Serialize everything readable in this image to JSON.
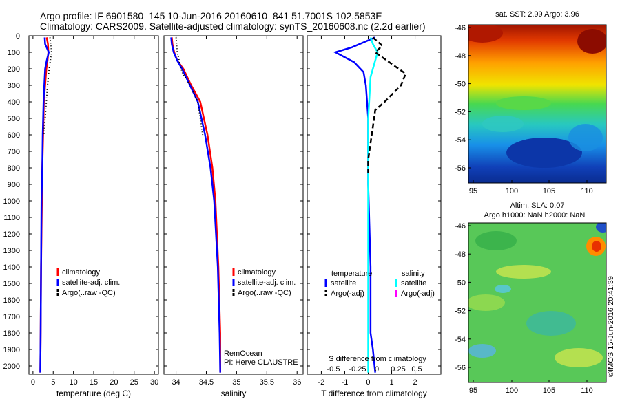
{
  "header": {
    "line1": "Argo profile: IF 6901580_145 10-Jun-2016 20160610_841 51.7001S 102.5853E",
    "line2": "Climatology: CARS2009. Satellite-adjusted climatology: synTS_20160608.nc (2.2d earlier)"
  },
  "side_stamp": "©IMOS 15-Jun-2016 20:41:39",
  "colors": {
    "red": "#ff0000",
    "blue": "#0000ff",
    "black": "#000000",
    "cyan": "#00ffff",
    "magenta": "#ff00ff"
  },
  "chart_data": [
    {
      "type": "line",
      "panel": "temperature",
      "xlabel": "temperature (deg C)",
      "ylabel": "",
      "xlim": [
        -1,
        31
      ],
      "ylim": [
        2050,
        0
      ],
      "xticks": [
        0,
        5,
        10,
        15,
        20,
        25,
        30
      ],
      "yticks": [
        0,
        100,
        200,
        300,
        400,
        500,
        600,
        700,
        800,
        900,
        1000,
        1100,
        1200,
        1300,
        1400,
        1500,
        1600,
        1700,
        1800,
        1900,
        2000
      ],
      "legend": [
        "climatology",
        "satellite-adj. clim.",
        "Argo(..raw -QC)"
      ],
      "series": [
        {
          "name": "climatology",
          "color": "red",
          "style": "solid",
          "x": [
            3.4,
            3.7,
            3.8,
            3.6,
            3.3,
            3.0,
            2.7,
            2.5,
            2.3,
            2.2,
            2.0,
            1.9,
            1.8
          ],
          "y": [
            10,
            50,
            100,
            150,
            200,
            300,
            400,
            600,
            800,
            1000,
            1400,
            1800,
            2040
          ]
        },
        {
          "name": "satellite-adj. clim.",
          "color": "blue",
          "style": "solid",
          "x": [
            2.9,
            3.0,
            3.9,
            3.4,
            3.0,
            2.8,
            2.6,
            2.4,
            2.3,
            2.1,
            2.0,
            1.9,
            1.8
          ],
          "y": [
            10,
            50,
            100,
            150,
            200,
            300,
            400,
            600,
            800,
            1000,
            1400,
            1800,
            2040
          ]
        },
        {
          "name": "Argo(..raw -QC)",
          "color": "black",
          "style": "dotted",
          "x": [
            4.2,
            4.4,
            4.6,
            4.3,
            3.9,
            3.6,
            3.3,
            3.0,
            2.7
          ],
          "y": [
            10,
            50,
            100,
            150,
            220,
            300,
            400,
            500,
            600
          ]
        }
      ]
    },
    {
      "type": "line",
      "panel": "salinity",
      "xlabel": "salinity",
      "ylabel": "",
      "xlim": [
        33.8,
        36.1
      ],
      "ylim": [
        2050,
        0
      ],
      "xticks": [
        34,
        34.5,
        35,
        35.5,
        36
      ],
      "legend": [
        "climatology",
        "satellite-adj. clim.",
        "Argo(..raw -QC)"
      ],
      "annotations": [
        "RemOcean",
        "PI: Herve CLAUSTRE"
      ],
      "series": [
        {
          "name": "climatology",
          "color": "red",
          "style": "solid",
          "x": [
            33.93,
            33.94,
            33.97,
            34.02,
            34.12,
            34.25,
            34.4,
            34.52,
            34.6,
            34.65,
            34.7,
            34.73,
            34.73
          ],
          "y": [
            10,
            50,
            100,
            150,
            200,
            300,
            400,
            600,
            800,
            1000,
            1400,
            1800,
            2040
          ]
        },
        {
          "name": "satellite-adj. clim.",
          "color": "blue",
          "style": "solid",
          "x": [
            33.92,
            33.93,
            33.96,
            34.02,
            34.1,
            34.23,
            34.36,
            34.48,
            34.57,
            34.63,
            34.69,
            34.72,
            34.73
          ],
          "y": [
            10,
            50,
            100,
            150,
            200,
            300,
            400,
            600,
            800,
            1000,
            1400,
            1800,
            2040
          ]
        },
        {
          "name": "Argo(..raw -QC)",
          "color": "black",
          "style": "dotted",
          "x": [
            34.0,
            34.01,
            34.02,
            34.05,
            34.1,
            34.23,
            34.36,
            34.4,
            34.44
          ],
          "y": [
            10,
            50,
            100,
            150,
            220,
            300,
            400,
            500,
            600
          ]
        }
      ]
    },
    {
      "type": "line",
      "panel": "difference",
      "xlabel": "T difference from climatology",
      "x2label": "S difference from climatology",
      "xlim": [
        -2.6,
        3.1
      ],
      "ylim": [
        2050,
        0
      ],
      "xticks": [
        -2,
        -1,
        0,
        1,
        2
      ],
      "x2ticks": [
        "-0.5",
        "-0.25",
        "0",
        "0.25",
        "0.5"
      ],
      "legend_title_left": "temperature",
      "legend_title_right": "salinity",
      "legend": [
        "satellite",
        "Argo(-adj)",
        "satellite",
        "Argo(-adj)"
      ],
      "series": [
        {
          "name": "satellite",
          "group": "temperature",
          "color": "blue",
          "style": "solid",
          "x": [
            0.3,
            -0.7,
            -1.4,
            -0.6,
            -0.2,
            -0.1,
            0.0,
            0.0,
            0.1,
            0.1,
            0.2,
            0.3
          ],
          "y": [
            10,
            70,
            100,
            160,
            220,
            300,
            500,
            900,
            1400,
            1800,
            1900,
            2040
          ]
        },
        {
          "name": "satellite",
          "group": "salinity",
          "color": "cyan",
          "style": "solid",
          "x": [
            0.1,
            0.2,
            0.4,
            0.3,
            0.1,
            0.0,
            0.0,
            0.0,
            0.0,
            0.0
          ],
          "y": [
            10,
            50,
            100,
            150,
            250,
            500,
            900,
            1400,
            1800,
            2040
          ]
        },
        {
          "name": "Argo(-adj)",
          "group": "temperature",
          "color": "black",
          "style": "dashed",
          "x": [
            0.2,
            0.6,
            0.3,
            0.8,
            1.6,
            1.4,
            0.7,
            0.3,
            0.2,
            0.1,
            0.0,
            0.0
          ],
          "y": [
            10,
            60,
            100,
            150,
            230,
            300,
            400,
            450,
            550,
            650,
            750,
            850
          ]
        }
      ]
    },
    {
      "type": "heatmap",
      "panel": "sst_map",
      "title": "sat. SST: 2.99 Argo: 3.96",
      "xticks": [
        95,
        100,
        105,
        110
      ],
      "yticks": [
        -46,
        -48,
        -50,
        -52,
        -54,
        -56
      ]
    },
    {
      "type": "heatmap",
      "panel": "sla_map",
      "title": "Altim. SLA: 0.07",
      "subtitle": "Argo h1000: NaN h2000: NaN",
      "xticks": [
        95,
        100,
        105,
        110
      ],
      "yticks": [
        -46,
        -48,
        -50,
        -52,
        -54,
        -56
      ]
    }
  ]
}
